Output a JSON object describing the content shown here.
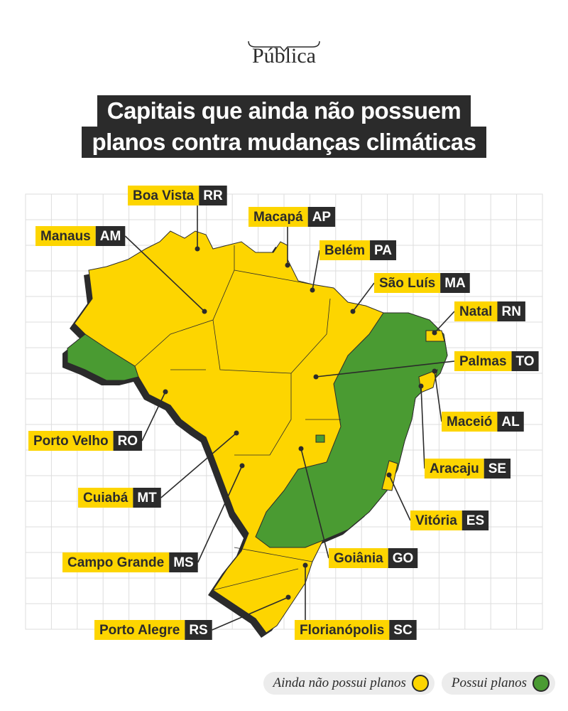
{
  "header": {
    "logo": "Pública"
  },
  "title": {
    "lines": [
      "Capitais que ainda não possuem",
      "planos contra mudanças climáticas"
    ]
  },
  "capitals": [
    {
      "city": "Boa Vista",
      "state": "RR"
    },
    {
      "city": "Macapá",
      "state": "AP"
    },
    {
      "city": "Manaus",
      "state": "AM"
    },
    {
      "city": "Belém",
      "state": "PA"
    },
    {
      "city": "São Luís",
      "state": "MA"
    },
    {
      "city": "Natal",
      "state": "RN"
    },
    {
      "city": "Palmas",
      "state": "TO"
    },
    {
      "city": "Porto Velho",
      "state": "RO"
    },
    {
      "city": "Maceió",
      "state": "AL"
    },
    {
      "city": "Aracaju",
      "state": "SE"
    },
    {
      "city": "Cuiabá",
      "state": "MT"
    },
    {
      "city": "Vitória",
      "state": "ES"
    },
    {
      "city": "Campo Grande",
      "state": "MS"
    },
    {
      "city": "Goiânia",
      "state": "GO"
    },
    {
      "city": "Porto Alegre",
      "state": "RS"
    },
    {
      "city": "Florianópolis",
      "state": "SC"
    }
  ],
  "legend": [
    {
      "label": "Ainda não possui planos"
    },
    {
      "label": "Possui planos"
    }
  ]
}
